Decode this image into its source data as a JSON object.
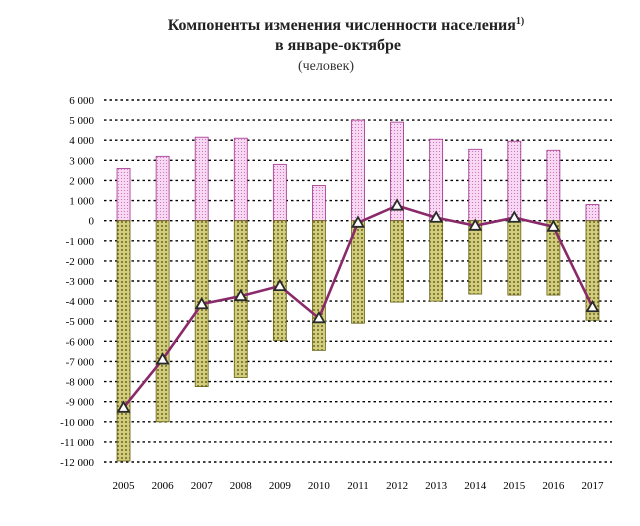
{
  "title": {
    "line1": "Компоненты изменения численности населения",
    "footnote": "1)",
    "line2": "в январе-октябре",
    "unit": "(человек)"
  },
  "colors": {
    "positive_bar": "#f8d8f2",
    "positive_bar_stroke": "#a0308a",
    "positive_dot": "#c060b0",
    "negative_bar": "#d2cd7a",
    "negative_bar_stroke": "#6a6418",
    "negative_dot": "#4a4510",
    "line": "#8a2a6a",
    "marker_fill": "#ffffff",
    "marker_stroke": "#2a2a2a",
    "grid": "#000000"
  },
  "chart_data": {
    "type": "bar",
    "categories": [
      "2005",
      "2006",
      "2007",
      "2008",
      "2009",
      "2010",
      "2011",
      "2012",
      "2013",
      "2014",
      "2015",
      "2016",
      "2017"
    ],
    "ylim": [
      -12000,
      6000
    ],
    "ytick_step": 1000,
    "ytick_labels": [
      "6 000",
      "5 000",
      "4 000",
      "3 000",
      "2 000",
      "1 000",
      "0",
      "-1 000",
      "-2 000",
      "-3 000",
      "-4 000",
      "-5 000",
      "-6 000",
      "-7 000",
      "-8 000",
      "-9 000",
      "-10 000",
      "-11 000",
      "-12 000"
    ],
    "grid": true,
    "series": [
      {
        "kind": "bar",
        "values": [
          2600,
          3200,
          4150,
          4100,
          2800,
          1750,
          5000,
          4900,
          4050,
          3550,
          3950,
          3500,
          800
        ]
      },
      {
        "kind": "bar",
        "values": [
          -11950,
          -10000,
          -8250,
          -7800,
          -5950,
          -6450,
          -5100,
          -4050,
          -4000,
          -3650,
          -3700,
          -3700,
          -4950
        ]
      },
      {
        "kind": "line",
        "marker": "triangle",
        "values": [
          -9300,
          -6900,
          -4150,
          -3750,
          -3250,
          -4850,
          -100,
          750,
          150,
          -250,
          150,
          -300,
          -4300
        ]
      }
    ]
  }
}
